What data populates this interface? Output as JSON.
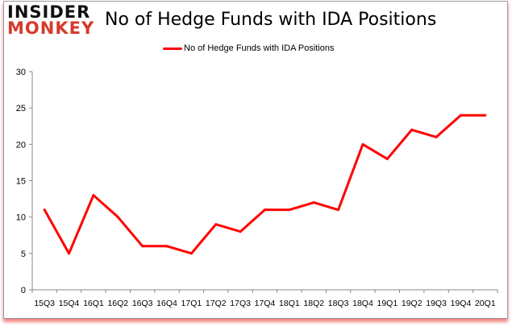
{
  "logo": {
    "line1": "INSIDER",
    "line2": "MONKEY"
  },
  "chart_data": {
    "type": "line",
    "title": "No of Hedge Funds with IDA Positions",
    "xlabel": "",
    "ylabel": "",
    "categories": [
      "15Q3",
      "15Q4",
      "16Q1",
      "16Q2",
      "16Q3",
      "16Q4",
      "17Q1",
      "17Q2",
      "17Q3",
      "17Q4",
      "18Q1",
      "18Q2",
      "18Q3",
      "18Q4",
      "19Q1",
      "19Q2",
      "19Q3",
      "19Q4",
      "20Q1"
    ],
    "series": [
      {
        "name": "No of Hedge Funds with IDA Positions",
        "color": "#ff0000",
        "values": [
          11,
          5,
          13,
          10,
          6,
          6,
          5,
          9,
          8,
          11,
          11,
          12,
          11,
          20,
          18,
          22,
          21,
          24,
          24
        ]
      }
    ],
    "ylim": [
      0,
      30
    ],
    "yticks": [
      0,
      5,
      10,
      15,
      20,
      25,
      30
    ],
    "grid": false,
    "legend": "top"
  }
}
